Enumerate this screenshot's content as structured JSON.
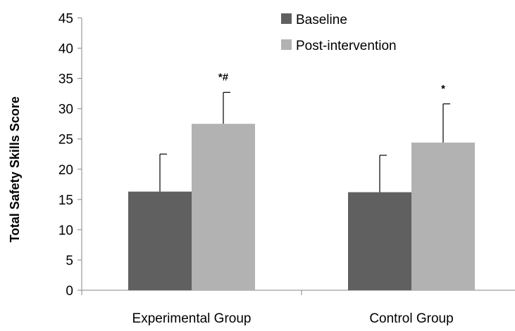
{
  "chart_data": {
    "type": "bar",
    "title": "",
    "xlabel": "",
    "ylabel": "Total Safety Skills Score",
    "ylim": [
      0,
      45
    ],
    "yticks": [
      0,
      5,
      10,
      15,
      20,
      25,
      30,
      35,
      40,
      45
    ],
    "grid": false,
    "legend_position": "top-right",
    "categories": [
      "Experimental Group",
      "Control Group"
    ],
    "series": [
      {
        "name": "Baseline",
        "color": "#606060",
        "values": [
          16.3,
          16.2
        ],
        "error": [
          6.2,
          6.1
        ],
        "annotations": [
          "",
          ""
        ]
      },
      {
        "name": "Post-intervention",
        "color": "#b2b2b2",
        "values": [
          27.5,
          24.4
        ],
        "error": [
          5.2,
          6.4
        ],
        "annotations": [
          "*#",
          "*"
        ]
      }
    ]
  }
}
